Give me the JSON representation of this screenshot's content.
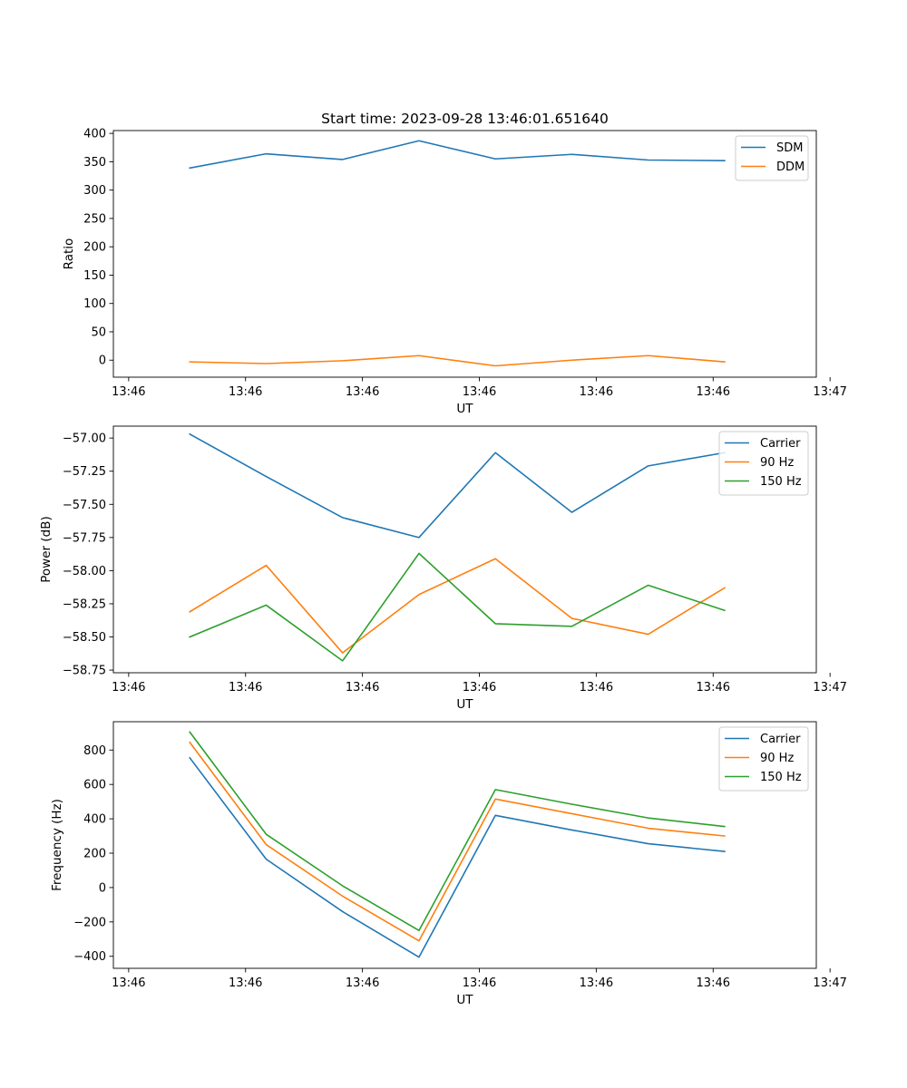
{
  "figure_title": "Start time: 2023-09-28 13:46:01.651640",
  "colors": {
    "blue": "#1f77b4",
    "orange": "#ff7f0e",
    "green": "#2ca02c"
  },
  "chart_data": [
    {
      "type": "line",
      "title": "Start time: 2023-09-28 13:46:01.651640",
      "xlabel": "UT",
      "ylabel": "Ratio",
      "xlim": [
        0,
        9.2
      ],
      "ylim": [
        -30,
        405
      ],
      "x": [
        1,
        2,
        3,
        4,
        5,
        6,
        7,
        8
      ],
      "x_ticks": [
        0.2,
        1.73,
        3.26,
        4.79,
        6.32,
        7.85,
        9.38
      ],
      "x_tick_labels": [
        "13:46",
        "13:46",
        "13:46",
        "13:46",
        "13:46",
        "13:46",
        "13:47"
      ],
      "y_ticks": [
        0,
        50,
        100,
        150,
        200,
        250,
        300,
        350,
        400
      ],
      "y_tick_labels": [
        "0",
        "50",
        "100",
        "150",
        "200",
        "250",
        "300",
        "350",
        "400"
      ],
      "legend_position": "top-right",
      "series": [
        {
          "name": "SDM",
          "color": "#1f77b4",
          "values": [
            339,
            364,
            354,
            387,
            355,
            363,
            353,
            352
          ]
        },
        {
          "name": "DDM",
          "color": "#ff7f0e",
          "values": [
            -3,
            -6,
            -1,
            8,
            -10,
            0,
            8,
            -3
          ]
        }
      ]
    },
    {
      "type": "line",
      "title": "",
      "xlabel": "UT",
      "ylabel": "Power (dB)",
      "xlim": [
        0,
        9.2
      ],
      "ylim": [
        -58.77,
        -56.91
      ],
      "x": [
        1,
        2,
        3,
        4,
        5,
        6,
        7,
        8
      ],
      "x_ticks": [
        0.2,
        1.73,
        3.26,
        4.79,
        6.32,
        7.85,
        9.38
      ],
      "x_tick_labels": [
        "13:46",
        "13:46",
        "13:46",
        "13:46",
        "13:46",
        "13:46",
        "13:47"
      ],
      "y_ticks": [
        -57.0,
        -57.25,
        -57.5,
        -57.75,
        -58.0,
        -58.25,
        -58.5,
        -58.75
      ],
      "y_tick_labels": [
        "−57.00",
        "−57.25",
        "−57.50",
        "−57.75",
        "−58.00",
        "−58.25",
        "−58.50",
        "−58.75"
      ],
      "legend_position": "top-right",
      "series": [
        {
          "name": "Carrier",
          "color": "#1f77b4",
          "values": [
            -56.97,
            -57.29,
            -57.6,
            -57.75,
            -57.11,
            -57.56,
            -57.21,
            -57.11
          ]
        },
        {
          "name": "90 Hz",
          "color": "#ff7f0e",
          "values": [
            -58.31,
            -57.96,
            -58.62,
            -58.18,
            -57.91,
            -58.36,
            -58.48,
            -58.13
          ]
        },
        {
          "name": "150 Hz",
          "color": "#2ca02c",
          "values": [
            -58.5,
            -58.26,
            -58.68,
            -57.87,
            -58.4,
            -58.42,
            -58.11,
            -58.3
          ]
        }
      ]
    },
    {
      "type": "line",
      "title": "",
      "xlabel": "UT",
      "ylabel": "Frequency (Hz)",
      "xlim": [
        0,
        9.2
      ],
      "ylim": [
        -470,
        965
      ],
      "x": [
        1,
        2,
        3,
        4,
        5,
        6,
        7,
        8
      ],
      "x_ticks": [
        0.2,
        1.73,
        3.26,
        4.79,
        6.32,
        7.85,
        9.38
      ],
      "x_tick_labels": [
        "13:46",
        "13:46",
        "13:46",
        "13:46",
        "13:46",
        "13:46",
        "13:47"
      ],
      "y_ticks": [
        -400,
        -200,
        0,
        200,
        400,
        600,
        800
      ],
      "y_tick_labels": [
        "−400",
        "−200",
        "0",
        "200",
        "400",
        "600",
        "800"
      ],
      "legend_position": "top-right",
      "series": [
        {
          "name": "Carrier",
          "color": "#1f77b4",
          "values": [
            755,
            165,
            -140,
            -405,
            420,
            335,
            255,
            210
          ]
        },
        {
          "name": "90 Hz",
          "color": "#ff7f0e",
          "values": [
            845,
            250,
            -50,
            -310,
            515,
            430,
            345,
            300
          ]
        },
        {
          "name": "150 Hz",
          "color": "#2ca02c",
          "values": [
            905,
            310,
            10,
            -250,
            570,
            485,
            405,
            355
          ]
        }
      ]
    }
  ]
}
